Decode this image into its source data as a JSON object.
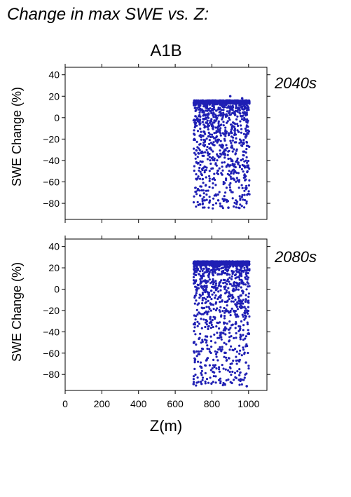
{
  "header": {
    "title": "Change in max SWE vs. Z:"
  },
  "scenario": "A1B",
  "chart_data": {
    "type": "scatter",
    "xlabel": "Z(m)",
    "xlim": [
      0,
      1100
    ],
    "x_ticks": [
      "0",
      "200",
      "400",
      "600",
      "800",
      "1000"
    ],
    "point_color": "#1f1fb4",
    "label_color": "#1f1fb4",
    "panels": [
      {
        "label": "2040s",
        "ylabel": "SWE Change (%)",
        "ylim": [
          -95,
          47
        ],
        "y_ticks": [
          "40",
          "20",
          "0",
          "−20",
          "−40",
          "−60",
          "−80"
        ],
        "x_range": [
          700,
          1005
        ],
        "y_max_band": [
          13,
          16
        ],
        "y_min": -85,
        "notable_points": [
          {
            "x": 900,
            "y": 20
          },
          {
            "x": 735,
            "y": -81
          },
          {
            "x": 890,
            "y": -84
          },
          {
            "x": 965,
            "y": 18
          }
        ]
      },
      {
        "label": "2080s",
        "ylabel": "SWE Change (%)",
        "ylim": [
          -95,
          47
        ],
        "y_ticks": [
          "40",
          "20",
          "0",
          "−20",
          "−40",
          "−60",
          "−80"
        ],
        "x_range": [
          700,
          1005
        ],
        "y_max_band": [
          23,
          26
        ],
        "y_min": -91,
        "notable_points": [
          {
            "x": 700,
            "y": -89
          },
          {
            "x": 870,
            "y": -89
          },
          {
            "x": 990,
            "y": -91
          }
        ]
      }
    ]
  }
}
